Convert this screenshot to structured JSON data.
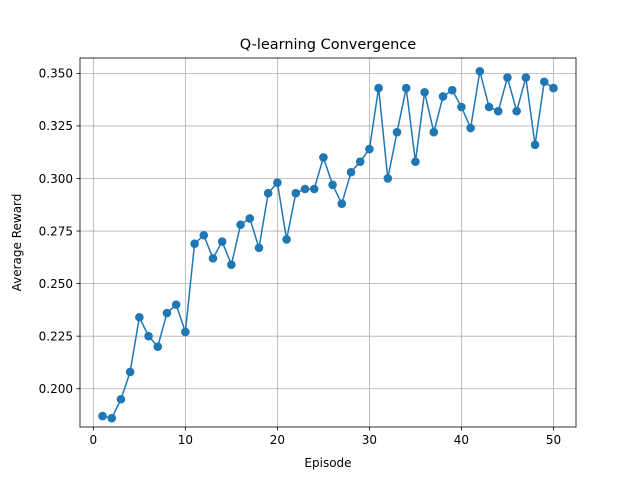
{
  "chart_data": {
    "type": "line",
    "title": "Q-learning Convergence",
    "xlabel": "Episode",
    "ylabel": "Average Reward",
    "xlim": [
      -1.45,
      52.45
    ],
    "ylim": [
      0.1818,
      0.3573
    ],
    "xticks": [
      0,
      10,
      20,
      30,
      40,
      50
    ],
    "yticks": [
      0.2,
      0.225,
      0.25,
      0.275,
      0.3,
      0.325,
      0.35
    ],
    "xtick_labels": [
      "0",
      "10",
      "20",
      "30",
      "40",
      "50"
    ],
    "ytick_labels": [
      "0.200",
      "0.225",
      "0.250",
      "0.275",
      "0.300",
      "0.325",
      "0.350"
    ],
    "grid": true,
    "series": [
      {
        "name": "Average Reward",
        "color": "#1f77b4",
        "marker": "circle",
        "x": [
          1,
          2,
          3,
          4,
          5,
          6,
          7,
          8,
          9,
          10,
          11,
          12,
          13,
          14,
          15,
          16,
          17,
          18,
          19,
          20,
          21,
          22,
          23,
          24,
          25,
          26,
          27,
          28,
          29,
          30,
          31,
          32,
          33,
          34,
          35,
          36,
          37,
          38,
          39,
          40,
          41,
          42,
          43,
          44,
          45,
          46,
          47,
          48,
          49,
          50
        ],
        "values": [
          0.187,
          0.186,
          0.195,
          0.208,
          0.234,
          0.225,
          0.22,
          0.236,
          0.24,
          0.227,
          0.269,
          0.273,
          0.262,
          0.27,
          0.259,
          0.278,
          0.281,
          0.267,
          0.293,
          0.298,
          0.271,
          0.293,
          0.295,
          0.295,
          0.31,
          0.297,
          0.288,
          0.303,
          0.308,
          0.314,
          0.343,
          0.3,
          0.322,
          0.343,
          0.308,
          0.341,
          0.322,
          0.339,
          0.342,
          0.334,
          0.324,
          0.351,
          0.334,
          0.332,
          0.348,
          0.332,
          0.348,
          0.316,
          0.346,
          0.343
        ]
      }
    ]
  }
}
